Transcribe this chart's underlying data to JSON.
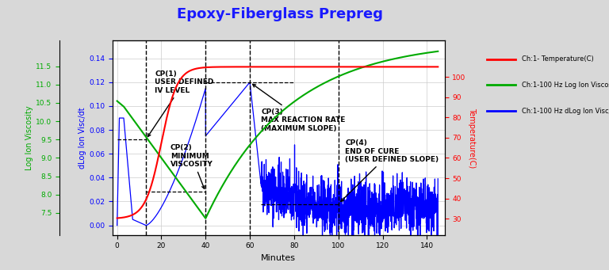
{
  "title": "Epoxy-Fiberglass Prepreg",
  "title_color": "#1a1aff",
  "title_fontsize": 13,
  "xlabel": "Minutes",
  "bg_color": "#D8D8D8",
  "plot_bg_color": "#FFFFFF",
  "legend": [
    {
      "label": "Ch:1- Temperature(C)",
      "color": "#FF0000"
    },
    {
      "label": "Ch:1-100 Hz Log Ion Viscosity",
      "color": "#00AA00"
    },
    {
      "label": "Ch:1-100 Hz dLog Ion Visc/dt",
      "color": "#0000FF"
    }
  ],
  "left_axis": {
    "label": "dLog Ion Visc/dt",
    "color": "#0000FF",
    "ticks": [
      0.0,
      0.02,
      0.04,
      0.06,
      0.08,
      0.1,
      0.12,
      0.14
    ],
    "ylim": [
      -0.008,
      0.155
    ]
  },
  "mid_axis": {
    "label": "Log Ion Viscosity",
    "color": "#00AA00",
    "ticks": [
      7.5,
      8.0,
      8.5,
      9.0,
      9.5,
      10.0,
      10.5,
      11.0,
      11.5
    ],
    "ylim": [
      6.9,
      12.2
    ]
  },
  "right_axis": {
    "label": "Temperature(C)",
    "color": "#FF0000",
    "ticks": [
      30,
      40,
      50,
      60,
      70,
      80,
      90,
      100
    ],
    "ylim": [
      22,
      118
    ]
  },
  "xlim": [
    -2,
    148
  ],
  "xticks": [
    0,
    20,
    40,
    60,
    80,
    100,
    120,
    140
  ]
}
